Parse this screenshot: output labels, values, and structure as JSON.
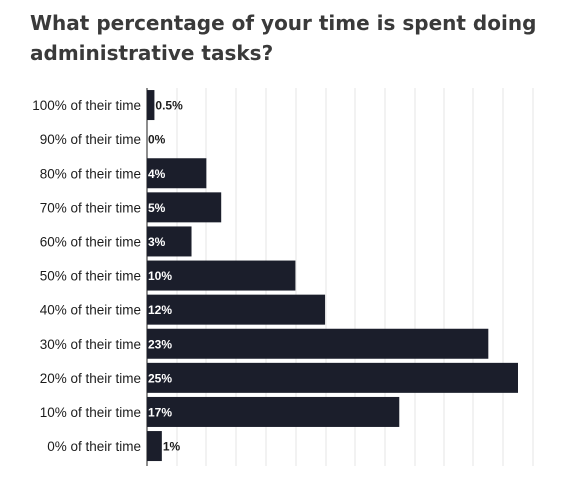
{
  "chart_data": {
    "type": "bar",
    "orientation": "horizontal",
    "title": "What percentage of your time is spent doing administrative tasks?",
    "xlabel": "",
    "ylabel": "",
    "xlim": [
      0,
      26
    ],
    "grid": true,
    "categories": [
      "100% of their time",
      "90% of their time",
      "80% of their time",
      "70% of their time",
      "60% of their time",
      "50% of their time",
      "40% of their time",
      "30% of their time",
      "20% of their time",
      "10% of their time",
      "0% of their time"
    ],
    "values": [
      0.5,
      0,
      4,
      5,
      3,
      10,
      12,
      23,
      25,
      17,
      1
    ],
    "value_labels": [
      "0.5%",
      "0%",
      "4%",
      "5%",
      "3%",
      "10%",
      "12%",
      "23%",
      "25%",
      "17%",
      "1%"
    ],
    "colors": {
      "bar": "#1b1e2b",
      "grid": "#e4e4e4",
      "label_on_bar": "#ffffff",
      "label_outside": "#1c1c1c"
    }
  }
}
